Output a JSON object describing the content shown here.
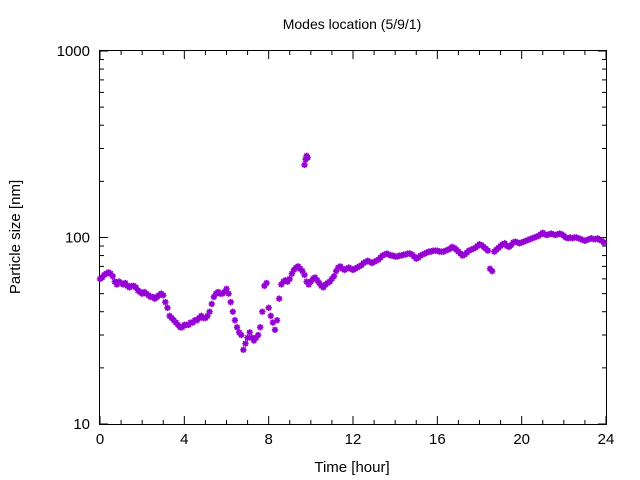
{
  "chart_data": {
    "type": "scatter",
    "title": "Modes location (5/9/1)",
    "xlabel": "Time [hour]",
    "ylabel": "Particle size [nm]",
    "xlim": [
      0,
      24
    ],
    "ylim": [
      10,
      1000
    ],
    "y_scale": "log",
    "x_ticks": [
      0,
      4,
      8,
      12,
      16,
      20,
      24
    ],
    "x_tick_labels": [
      "0",
      "4",
      "8",
      "12",
      "16",
      "20",
      "24"
    ],
    "y_ticks": [
      10,
      100,
      1000
    ],
    "y_tick_labels": [
      "10",
      "100",
      "1000"
    ],
    "grid": false,
    "legend": "none",
    "marker_color": "#9400d3",
    "marker": "asterisk",
    "points": [
      [
        0.0,
        60
      ],
      [
        0.1,
        61
      ],
      [
        0.2,
        63
      ],
      [
        0.3,
        64
      ],
      [
        0.4,
        65
      ],
      [
        0.5,
        64
      ],
      [
        0.6,
        62
      ],
      [
        0.7,
        58
      ],
      [
        0.8,
        56
      ],
      [
        0.9,
        58
      ],
      [
        1.0,
        57
      ],
      [
        1.1,
        56
      ],
      [
        1.2,
        57
      ],
      [
        1.3,
        55
      ],
      [
        1.4,
        54
      ],
      [
        1.5,
        55
      ],
      [
        1.6,
        55
      ],
      [
        1.7,
        54
      ],
      [
        1.8,
        52
      ],
      [
        1.9,
        51
      ],
      [
        2.0,
        50
      ],
      [
        2.1,
        51
      ],
      [
        2.2,
        50
      ],
      [
        2.3,
        49
      ],
      [
        2.4,
        48
      ],
      [
        2.5,
        48
      ],
      [
        2.6,
        47
      ],
      [
        2.7,
        48
      ],
      [
        2.8,
        49
      ],
      [
        2.9,
        50
      ],
      [
        3.0,
        49
      ],
      [
        3.1,
        45
      ],
      [
        3.2,
        42
      ],
      [
        3.3,
        38
      ],
      [
        3.4,
        37
      ],
      [
        3.5,
        36
      ],
      [
        3.6,
        35
      ],
      [
        3.7,
        34
      ],
      [
        3.8,
        33
      ],
      [
        3.9,
        33
      ],
      [
        4.0,
        34
      ],
      [
        4.1,
        34
      ],
      [
        4.2,
        34
      ],
      [
        4.3,
        35
      ],
      [
        4.4,
        35
      ],
      [
        4.5,
        36
      ],
      [
        4.6,
        36
      ],
      [
        4.7,
        37
      ],
      [
        4.8,
        38
      ],
      [
        4.9,
        37
      ],
      [
        5.0,
        37
      ],
      [
        5.1,
        38
      ],
      [
        5.2,
        40
      ],
      [
        5.3,
        44
      ],
      [
        5.4,
        48
      ],
      [
        5.5,
        50
      ],
      [
        5.6,
        51
      ],
      [
        5.7,
        50
      ],
      [
        5.8,
        50
      ],
      [
        5.9,
        51
      ],
      [
        6.0,
        53
      ],
      [
        6.1,
        50
      ],
      [
        6.2,
        45
      ],
      [
        6.3,
        40
      ],
      [
        6.4,
        36
      ],
      [
        6.5,
        33
      ],
      [
        6.6,
        31
      ],
      [
        6.7,
        30
      ],
      [
        6.8,
        25
      ],
      [
        6.9,
        27
      ],
      [
        7.0,
        29
      ],
      [
        7.1,
        31
      ],
      [
        7.2,
        29
      ],
      [
        7.3,
        28
      ],
      [
        7.4,
        29
      ],
      [
        7.5,
        30
      ],
      [
        7.6,
        33
      ],
      [
        7.7,
        40
      ],
      [
        7.8,
        55
      ],
      [
        7.9,
        57
      ],
      [
        8.0,
        42
      ],
      [
        8.1,
        38
      ],
      [
        8.2,
        35
      ],
      [
        8.3,
        32
      ],
      [
        8.4,
        36
      ],
      [
        8.5,
        47
      ],
      [
        8.6,
        56
      ],
      [
        8.7,
        58
      ],
      [
        8.8,
        59
      ],
      [
        8.9,
        58
      ],
      [
        9.0,
        60
      ],
      [
        9.1,
        64
      ],
      [
        9.2,
        67
      ],
      [
        9.3,
        69
      ],
      [
        9.4,
        70
      ],
      [
        9.5,
        68
      ],
      [
        9.6,
        66
      ],
      [
        9.7,
        63
      ],
      [
        9.8,
        58
      ],
      [
        9.9,
        56
      ],
      [
        10.0,
        58
      ],
      [
        10.1,
        60
      ],
      [
        10.2,
        61
      ],
      [
        10.3,
        59
      ],
      [
        10.4,
        57
      ],
      [
        10.5,
        55
      ],
      [
        10.6,
        54
      ],
      [
        10.7,
        56
      ],
      [
        10.8,
        57
      ],
      [
        10.9,
        58
      ],
      [
        11.0,
        60
      ],
      [
        11.1,
        62
      ],
      [
        11.2,
        66
      ],
      [
        11.3,
        69
      ],
      [
        11.4,
        70
      ],
      [
        11.5,
        68
      ],
      [
        11.6,
        67
      ],
      [
        11.7,
        68
      ],
      [
        11.8,
        69
      ],
      [
        11.9,
        68
      ],
      [
        12.0,
        67
      ],
      [
        12.1,
        68
      ],
      [
        12.2,
        69
      ],
      [
        12.3,
        70
      ],
      [
        12.4,
        71
      ],
      [
        12.5,
        73
      ],
      [
        12.6,
        74
      ],
      [
        12.7,
        75
      ],
      [
        12.8,
        74
      ],
      [
        12.9,
        73
      ],
      [
        13.0,
        74
      ],
      [
        13.1,
        75
      ],
      [
        13.2,
        76
      ],
      [
        13.3,
        78
      ],
      [
        13.4,
        80
      ],
      [
        13.5,
        81
      ],
      [
        13.6,
        82
      ],
      [
        13.7,
        81
      ],
      [
        13.8,
        80
      ],
      [
        13.9,
        80
      ],
      [
        14.0,
        79
      ],
      [
        14.1,
        79
      ],
      [
        14.2,
        80
      ],
      [
        14.3,
        80
      ],
      [
        14.4,
        81
      ],
      [
        14.5,
        81
      ],
      [
        14.6,
        82
      ],
      [
        14.7,
        82
      ],
      [
        14.8,
        81
      ],
      [
        14.9,
        79
      ],
      [
        15.0,
        77
      ],
      [
        15.1,
        78
      ],
      [
        15.2,
        80
      ],
      [
        15.3,
        81
      ],
      [
        15.4,
        82
      ],
      [
        15.5,
        83
      ],
      [
        15.6,
        84
      ],
      [
        15.7,
        84
      ],
      [
        15.8,
        85
      ],
      [
        15.9,
        85
      ],
      [
        16.0,
        85
      ],
      [
        16.1,
        84
      ],
      [
        16.2,
        84
      ],
      [
        16.3,
        84
      ],
      [
        16.4,
        85
      ],
      [
        16.5,
        86
      ],
      [
        16.6,
        87
      ],
      [
        16.7,
        89
      ],
      [
        16.8,
        88
      ],
      [
        16.9,
        86
      ],
      [
        17.0,
        84
      ],
      [
        17.1,
        82
      ],
      [
        17.2,
        80
      ],
      [
        17.3,
        81
      ],
      [
        17.4,
        83
      ],
      [
        17.5,
        85
      ],
      [
        17.6,
        86
      ],
      [
        17.7,
        87
      ],
      [
        17.8,
        88
      ],
      [
        17.9,
        90
      ],
      [
        18.0,
        92
      ],
      [
        18.1,
        91
      ],
      [
        18.2,
        89
      ],
      [
        18.3,
        87
      ],
      [
        18.4,
        85
      ],
      [
        18.5,
        68
      ],
      [
        18.6,
        66
      ],
      [
        18.7,
        84
      ],
      [
        18.8,
        86
      ],
      [
        18.9,
        88
      ],
      [
        19.0,
        90
      ],
      [
        19.1,
        92
      ],
      [
        19.2,
        93
      ],
      [
        19.3,
        90
      ],
      [
        19.4,
        89
      ],
      [
        19.5,
        91
      ],
      [
        19.6,
        94
      ],
      [
        19.7,
        95
      ],
      [
        19.8,
        94
      ],
      [
        19.9,
        93
      ],
      [
        20.0,
        94
      ],
      [
        20.1,
        95
      ],
      [
        20.2,
        96
      ],
      [
        20.3,
        97
      ],
      [
        20.4,
        98
      ],
      [
        20.5,
        99
      ],
      [
        20.6,
        100
      ],
      [
        20.7,
        101
      ],
      [
        20.8,
        102
      ],
      [
        20.9,
        104
      ],
      [
        21.0,
        106
      ],
      [
        21.1,
        104
      ],
      [
        21.2,
        103
      ],
      [
        21.3,
        104
      ],
      [
        21.4,
        105
      ],
      [
        21.5,
        104
      ],
      [
        21.6,
        103
      ],
      [
        21.7,
        104
      ],
      [
        21.8,
        105
      ],
      [
        21.9,
        104
      ],
      [
        22.0,
        102
      ],
      [
        22.1,
        100
      ],
      [
        22.2,
        99
      ],
      [
        22.3,
        100
      ],
      [
        22.4,
        99
      ],
      [
        22.5,
        100
      ],
      [
        22.6,
        100
      ],
      [
        22.7,
        99
      ],
      [
        22.8,
        98
      ],
      [
        22.9,
        97
      ],
      [
        23.0,
        96
      ],
      [
        23.1,
        97
      ],
      [
        23.2,
        98
      ],
      [
        23.3,
        99
      ],
      [
        23.4,
        98
      ],
      [
        23.5,
        98
      ],
      [
        23.6,
        99
      ],
      [
        23.7,
        97
      ],
      [
        23.8,
        96
      ],
      [
        23.9,
        94
      ],
      [
        9.7,
        245
      ],
      [
        9.75,
        262
      ],
      [
        9.8,
        274
      ],
      [
        9.85,
        268
      ]
    ]
  }
}
